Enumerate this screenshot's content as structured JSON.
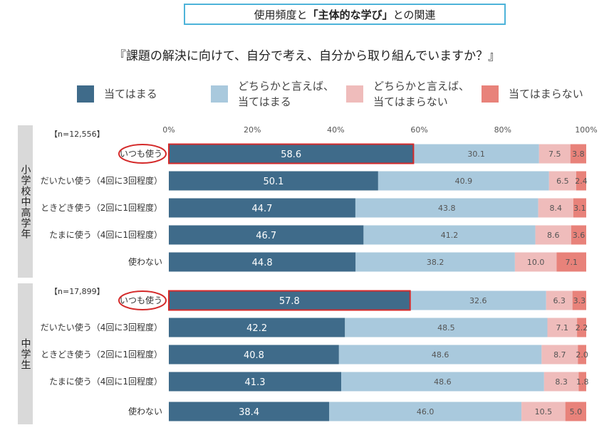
{
  "title": {
    "prefix": "使用頻度と",
    "bold": "「主体的な学び」",
    "suffix": "との関連"
  },
  "question": "『課題の解決に向けて、自分で考え、自分から取り組んでいますか？』",
  "legend": [
    {
      "label": "当てはまる",
      "color": "#3f6b8a"
    },
    {
      "label": "どちらかと言えば、\n当てはまる",
      "color": "#a9c9dd"
    },
    {
      "label": "どちらかと言えば、\n当てはまらない",
      "color": "#efbcbb"
    },
    {
      "label": "当てはまらない",
      "color": "#e8827a"
    }
  ],
  "chart_data": {
    "type": "bar",
    "orientation": "horizontal-stacked-100",
    "xlim": [
      0,
      100
    ],
    "x_ticks": [
      "0%",
      "20%",
      "40%",
      "60%",
      "80%",
      "100%"
    ],
    "series_names": [
      "当てはまる",
      "どちらかと言えば、当てはまる",
      "どちらかと言えば、当てはまらない",
      "当てはまらない"
    ],
    "colors": [
      "#3f6b8a",
      "#a9c9dd",
      "#efbcbb",
      "#e8827a"
    ],
    "highlight_color": "#d42a2a",
    "groups": [
      {
        "name": "小学校中高学年",
        "n": "【n=12,556】",
        "rows": [
          {
            "label": "いつも使う",
            "values": [
              58.6,
              30.1,
              7.5,
              3.8
            ],
            "highlight": true
          },
          {
            "label": "だいたい使う（4回に3回程度）",
            "values": [
              50.1,
              40.9,
              6.5,
              2.4
            ]
          },
          {
            "label": "ときどき使う（2回に1回程度）",
            "values": [
              44.7,
              43.8,
              8.4,
              3.1
            ]
          },
          {
            "label": "たまに使う（4回に1回程度）",
            "values": [
              46.7,
              41.2,
              8.6,
              3.6
            ]
          },
          {
            "label": "使わない",
            "values": [
              44.8,
              38.2,
              10.0,
              7.1
            ]
          }
        ]
      },
      {
        "name": "中学生",
        "n": "【n=17,899】",
        "rows": [
          {
            "label": "いつも使う",
            "values": [
              57.8,
              32.6,
              6.3,
              3.3
            ],
            "highlight": true
          },
          {
            "label": "だいたい使う（4回に3回程度）",
            "values": [
              42.2,
              48.5,
              7.1,
              2.2
            ]
          },
          {
            "label": "ときどき使う（2回に1回程度）",
            "values": [
              40.8,
              48.6,
              8.7,
              2.0
            ]
          },
          {
            "label": "たまに使う（4回に1回程度）",
            "values": [
              41.3,
              48.6,
              8.3,
              1.8
            ]
          },
          {
            "label": "使わない",
            "values": [
              38.4,
              46.0,
              10.5,
              5.0
            ]
          }
        ]
      }
    ]
  }
}
